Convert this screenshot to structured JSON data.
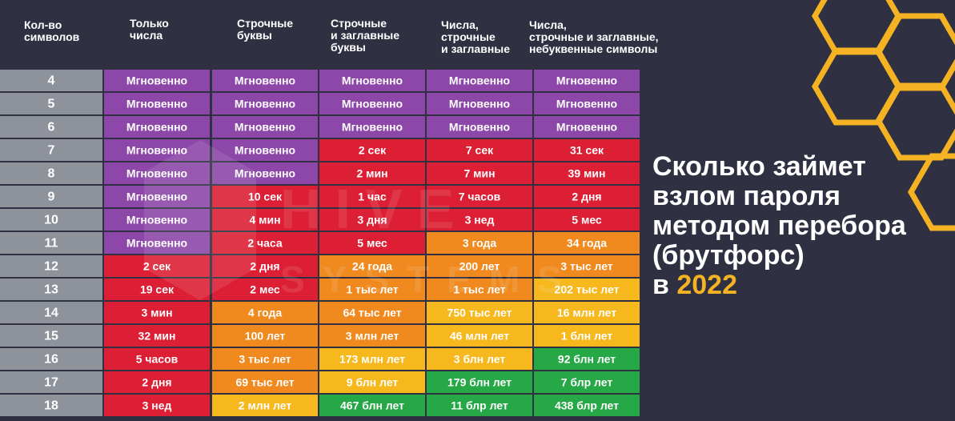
{
  "chart_data": {
    "type": "table",
    "title": "Сколько займет взлом пароля методом перебора (брутфорс) в 2022",
    "columns": [
      "Кол-во символов",
      "Только числа",
      "Строчные буквы",
      "Строчные и заглавные буквы",
      "Числа, строчные и заглавные",
      "Числа, строчные и заглавные, небуквенные символы"
    ],
    "rows": [
      {
        "chars": "4",
        "cells": [
          "Мгновенно",
          "Мгновенно",
          "Мгновенно",
          "Мгновенно",
          "Мгновенно"
        ],
        "levels": [
          "instant",
          "instant",
          "instant",
          "instant",
          "instant"
        ]
      },
      {
        "chars": "5",
        "cells": [
          "Мгновенно",
          "Мгновенно",
          "Мгновенно",
          "Мгновенно",
          "Мгновенно"
        ],
        "levels": [
          "instant",
          "instant",
          "instant",
          "instant",
          "instant"
        ]
      },
      {
        "chars": "6",
        "cells": [
          "Мгновенно",
          "Мгновенно",
          "Мгновенно",
          "Мгновенно",
          "Мгновенно"
        ],
        "levels": [
          "instant",
          "instant",
          "instant",
          "instant",
          "instant"
        ]
      },
      {
        "chars": "7",
        "cells": [
          "Мгновенно",
          "Мгновенно",
          "2 сек",
          "7 сек",
          "31 сек"
        ],
        "levels": [
          "instant",
          "instant",
          "red",
          "red",
          "red"
        ]
      },
      {
        "chars": "8",
        "cells": [
          "Мгновенно",
          "Мгновенно",
          "2 мин",
          "7 мин",
          "39 мин"
        ],
        "levels": [
          "instant",
          "instant",
          "red",
          "red",
          "red"
        ]
      },
      {
        "chars": "9",
        "cells": [
          "Мгновенно",
          "10 сек",
          "1 час",
          "7 часов",
          "2 дня"
        ],
        "levels": [
          "instant",
          "red",
          "red",
          "red",
          "red"
        ]
      },
      {
        "chars": "10",
        "cells": [
          "Мгновенно",
          "4 мин",
          "3 дня",
          "3 нед",
          "5 мес"
        ],
        "levels": [
          "instant",
          "red",
          "red",
          "red",
          "red"
        ]
      },
      {
        "chars": "11",
        "cells": [
          "Мгновенно",
          "2 часа",
          "5 мес",
          "3 года",
          "34 года"
        ],
        "levels": [
          "instant",
          "red",
          "red",
          "orange",
          "orange"
        ]
      },
      {
        "chars": "12",
        "cells": [
          "2 сек",
          "2 дня",
          "24 года",
          "200 лет",
          "3 тыс лет"
        ],
        "levels": [
          "red",
          "red",
          "orange",
          "orange",
          "orange"
        ]
      },
      {
        "chars": "13",
        "cells": [
          "19 сек",
          "2 мес",
          "1 тыс лет",
          "1 тыс лет",
          "202 тыс лет"
        ],
        "levels": [
          "red",
          "red",
          "orange",
          "orange",
          "yellow"
        ]
      },
      {
        "chars": "14",
        "cells": [
          "3 мин",
          "4 года",
          "64 тыс лет",
          "750 тыс лет",
          "16 млн лет"
        ],
        "levels": [
          "red",
          "orange",
          "orange",
          "yellow",
          "yellow"
        ]
      },
      {
        "chars": "15",
        "cells": [
          "32 мин",
          "100 лет",
          "3 млн лет",
          "46 млн лет",
          "1 блн лет"
        ],
        "levels": [
          "red",
          "orange",
          "orange",
          "yellow",
          "yellow"
        ]
      },
      {
        "chars": "16",
        "cells": [
          "5 часов",
          "3 тыс лет",
          "173 млн лет",
          "3 блн лет",
          "92 блн лет"
        ],
        "levels": [
          "red",
          "orange",
          "yellow",
          "yellow",
          "green"
        ]
      },
      {
        "chars": "17",
        "cells": [
          "2 дня",
          "69 тыс лет",
          "9 блн лет",
          "179 блн лет",
          "7 блр лет"
        ],
        "levels": [
          "red",
          "orange",
          "yellow",
          "green",
          "green"
        ]
      },
      {
        "chars": "18",
        "cells": [
          "3 нед",
          "2 млн лет",
          "467 блн лет",
          "11 блр лет",
          "438 блр лет"
        ],
        "levels": [
          "red",
          "yellow",
          "green",
          "green",
          "green"
        ]
      }
    ],
    "level_colors": {
      "instant": "#8c47a8",
      "red": "#dc1f34",
      "orange": "#f08a1f",
      "yellow": "#f7b81e",
      "green": "#26a846"
    },
    "row_label_color": "#8e929b"
  },
  "side_title": {
    "text": "Сколько займет взлом пароля методом перебора (брутфорс) в",
    "year": "2022"
  },
  "colors": {
    "background": "#2f3142",
    "accent": "#f5b324"
  },
  "watermark": {
    "line1": "HIVE",
    "line2": "SYSTEMS"
  }
}
